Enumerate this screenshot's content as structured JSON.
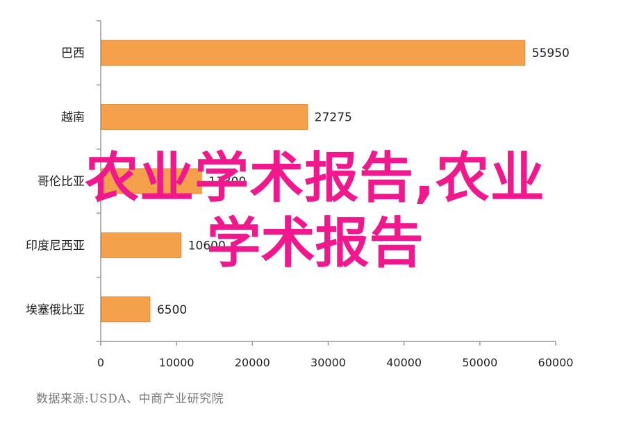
{
  "chart_data": {
    "type": "bar",
    "orientation": "horizontal",
    "categories": [
      "巴西",
      "越南",
      "哥伦比亚",
      "印度尼西亚",
      "埃塞俄比亚"
    ],
    "values": [
      55950,
      27275,
      13300,
      10600,
      6500
    ],
    "value_labels": [
      "55950",
      "27275",
      "13300",
      "10600",
      "6500"
    ],
    "x_ticks": [
      "0",
      "10000",
      "20000",
      "30000",
      "40000",
      "50000",
      "60000"
    ],
    "xlim": [
      0,
      60000
    ],
    "bar_color": "#f5a04a",
    "bar_edge_color": "#e08a35",
    "grid": false,
    "legend": "none"
  },
  "source": "数据来源:USDA、中商产业研究院",
  "watermark": {
    "line1": "农业学术报告,农业",
    "line2": "学术报告",
    "color": "#f0188c"
  }
}
